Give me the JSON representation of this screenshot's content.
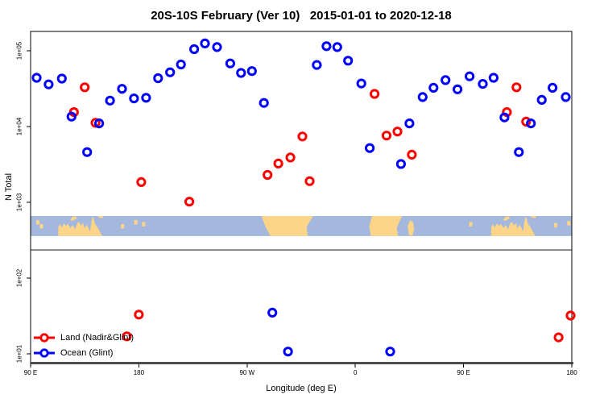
{
  "title": "20S-10S February (Ver 10)   2015-01-01 to 2020-12-18",
  "chart_data": {
    "type": "scatter",
    "title": "20S-10S February (Ver 10)   2015-01-01 to 2020-12-18",
    "xlabel": "Longitude (deg E)",
    "ylabel": "N Total",
    "x_axis": {
      "note": "longitude axis spans 450 degrees starting at 90E and wrapping past 180 twice",
      "range_deg": [
        90,
        540
      ],
      "ticks": [
        {
          "deg": 90,
          "label": "90 E"
        },
        {
          "deg": 180,
          "label": "180"
        },
        {
          "deg": 270,
          "label": "90 W"
        },
        {
          "deg": 360,
          "label": "0"
        },
        {
          "deg": 450,
          "label": "90 E"
        },
        {
          "deg": 540,
          "label": "180"
        }
      ]
    },
    "y_axis": {
      "scale": "log10",
      "ticks": [
        {
          "value": 10,
          "label": "1e+01"
        },
        {
          "value": 100,
          "label": "1e+02"
        },
        {
          "value": 1000,
          "label": "1e+03"
        },
        {
          "value": 10000,
          "label": "1e+04"
        },
        {
          "value": 100000,
          "label": "1e+05"
        }
      ]
    },
    "legend": [
      {
        "name": "Land (Nadir&Glint)",
        "color": "#ff0000"
      },
      {
        "name": "Ocean (Glint)",
        "color": "#0000ff"
      }
    ],
    "series": [
      {
        "name": "Land (Nadir&Glint)",
        "color": "#ff0000",
        "points": [
          [
            126,
            15500
          ],
          [
            135,
            33000
          ],
          [
            144,
            11200
          ],
          [
            182,
            1850
          ],
          [
            222,
            1020
          ],
          [
            287,
            2300
          ],
          [
            296,
            3250
          ],
          [
            306,
            3900
          ],
          [
            316,
            7400
          ],
          [
            322,
            1900
          ],
          [
            376,
            27000
          ],
          [
            386,
            7600
          ],
          [
            395,
            8600
          ],
          [
            407,
            4250
          ],
          [
            486,
            15500
          ],
          [
            494,
            33000
          ],
          [
            502,
            11600
          ],
          [
            170,
            17
          ],
          [
            180,
            33
          ],
          [
            529,
            16.5
          ],
          [
            539,
            32
          ]
        ]
      },
      {
        "name": "Ocean (Glint)",
        "color": "#0000ff",
        "points": [
          [
            95,
            44000
          ],
          [
            105,
            36000
          ],
          [
            116,
            43000
          ],
          [
            124,
            13500
          ],
          [
            137,
            4600
          ],
          [
            147,
            11000
          ],
          [
            156,
            22000
          ],
          [
            166,
            31500
          ],
          [
            176,
            23500
          ],
          [
            186,
            24000
          ],
          [
            196,
            43500
          ],
          [
            206,
            52000
          ],
          [
            215,
            66000
          ],
          [
            226,
            105000
          ],
          [
            235,
            125000
          ],
          [
            245,
            112000
          ],
          [
            256,
            68000
          ],
          [
            265,
            51000
          ],
          [
            274,
            54000
          ],
          [
            284,
            20500
          ],
          [
            328,
            65000
          ],
          [
            336,
            115000
          ],
          [
            345,
            112000
          ],
          [
            354,
            74000
          ],
          [
            365,
            37000
          ],
          [
            372,
            5200
          ],
          [
            398,
            3200
          ],
          [
            405,
            11000
          ],
          [
            416,
            24500
          ],
          [
            425,
            32500
          ],
          [
            435,
            41000
          ],
          [
            445,
            31000
          ],
          [
            455,
            46000
          ],
          [
            466,
            36500
          ],
          [
            475,
            44000
          ],
          [
            484,
            13200
          ],
          [
            496,
            4600
          ],
          [
            506,
            11000
          ],
          [
            515,
            22500
          ],
          [
            524,
            32500
          ],
          [
            535,
            24500
          ],
          [
            291,
            35
          ],
          [
            304,
            10.7
          ],
          [
            389,
            10.7
          ]
        ]
      }
    ],
    "map_band": {
      "description": "world map strip of the 20S-10S latitude band drawn across the plot",
      "ocean_color": "#a3b8dc",
      "land_color": "#fcd588",
      "top_n": 660,
      "bottom_n": 358,
      "divider_n": 235,
      "divider_color": "#7a7a7a",
      "bottom_axis_color": "#4d4d4d",
      "repeat_offset_deg": 360,
      "land_polygons": {
        "australia": [
          [
            113,
            1
          ],
          [
            113,
            0.55
          ],
          [
            114.5,
            0.4
          ],
          [
            116,
            0.58
          ],
          [
            117.5,
            0.36
          ],
          [
            119.5,
            0.5
          ],
          [
            121,
            0.38
          ],
          [
            123,
            0.6
          ],
          [
            125,
            0.45
          ],
          [
            127,
            0.66
          ],
          [
            128.5,
            0.4
          ],
          [
            130,
            0.28
          ],
          [
            132,
            0.48
          ],
          [
            133.5,
            0.34
          ],
          [
            135,
            0.62
          ],
          [
            136.5,
            0.42
          ],
          [
            138,
            0.58
          ],
          [
            139.5,
            0.78
          ],
          [
            140.5,
            0.3
          ],
          [
            141.5,
            0.04
          ],
          [
            142.5,
            0.1
          ],
          [
            143.5,
            0.4
          ],
          [
            145,
            0.5
          ],
          [
            146.5,
            0.65
          ],
          [
            148,
            0.82
          ],
          [
            149.5,
            1
          ]
        ],
        "timor": [
          [
            123,
            0.18
          ],
          [
            125,
            0.04
          ],
          [
            127.5,
            0.02
          ],
          [
            128.5,
            0.12
          ],
          [
            126,
            0.2
          ],
          [
            124,
            0.24
          ]
        ],
        "new_guinea_tip": [
          [
            145.5,
            0
          ],
          [
            150.5,
            0
          ],
          [
            149.5,
            0.12
          ],
          [
            147,
            0.08
          ]
        ],
        "south_america": [
          [
            282,
            0
          ],
          [
            325,
            0
          ],
          [
            322,
            0.28
          ],
          [
            319.5,
            0.55
          ],
          [
            320.5,
            1
          ],
          [
            289.5,
            1
          ],
          [
            285.5,
            0.55
          ]
        ],
        "africa": [
          [
            374,
            0
          ],
          [
            399,
            0
          ],
          [
            396.5,
            0.3
          ],
          [
            394.5,
            0.6
          ],
          [
            395.5,
            1
          ],
          [
            373,
            1
          ],
          [
            371.5,
            0.5
          ]
        ],
        "madagascar": [
          [
            403.5,
            0.5
          ],
          [
            405.5,
            0.22
          ],
          [
            408,
            0.3
          ],
          [
            409,
            0.65
          ],
          [
            407.5,
            0.98
          ],
          [
            404.5,
            0.95
          ]
        ]
      },
      "islands": [
        {
          "deg": 96,
          "frac": 0.2
        },
        {
          "deg": 99,
          "frac": 0.4
        },
        {
          "deg": 166.5,
          "frac": 0.4
        },
        {
          "deg": 177.5,
          "frac": 0.2
        },
        {
          "deg": 184,
          "frac": 0.3
        },
        {
          "deg": 456,
          "frac": 0.3
        },
        {
          "deg": 526.5,
          "frac": 0.35
        },
        {
          "deg": 537.5,
          "frac": 0.25
        }
      ]
    }
  }
}
